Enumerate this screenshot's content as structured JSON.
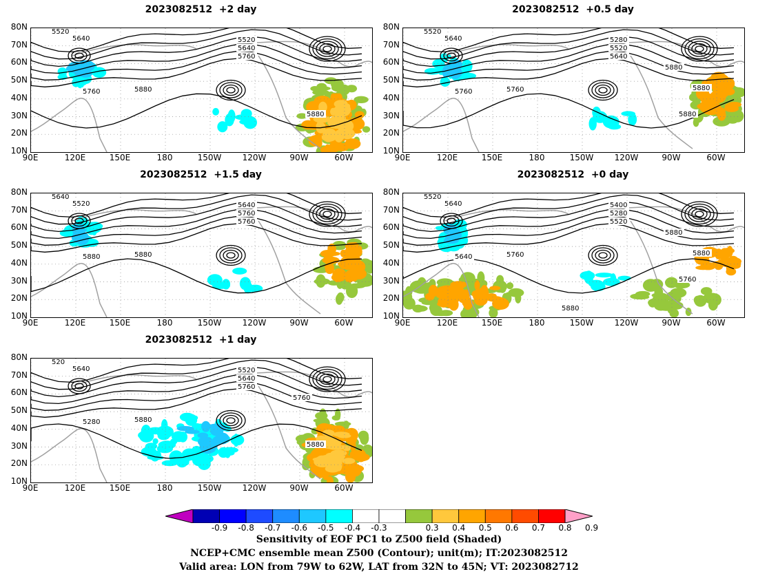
{
  "panels": [
    {
      "title": "2023082512  +2 day",
      "labels": [
        "5520",
        "5640",
        "5520",
        "5640",
        "5760",
        "5760",
        "5880",
        "5880"
      ],
      "shading": "strong-east"
    },
    {
      "title": "2023082512  +0.5 day",
      "labels": [
        "5520",
        "5640",
        "5280",
        "5520",
        "5640",
        "5760",
        "5760",
        "5880",
        "5880",
        "5880"
      ],
      "shading": "medium-east"
    },
    {
      "title": "2023082512  +1.5 day",
      "labels": [
        "5640",
        "5520",
        "5640",
        "5760",
        "5760",
        "5880",
        "5880"
      ],
      "shading": "medium-east"
    },
    {
      "title": "2023082512  +0 day",
      "labels": [
        "5520",
        "5640",
        "5400",
        "5280",
        "5520",
        "5640",
        "5760",
        "5760",
        "5880",
        "5880",
        "5880"
      ],
      "shading": "south-west"
    },
    {
      "title": "2023082512  +1 day",
      "labels": [
        "520",
        "5640",
        "5520",
        "5640",
        "5760",
        "5280",
        "5880",
        "5880",
        "5760"
      ],
      "shading": "strong-east-blue"
    }
  ],
  "lat_labels": [
    "80N",
    "70N",
    "60N",
    "50N",
    "40N",
    "30N",
    "20N",
    "10N"
  ],
  "lon_labels": [
    "90E",
    "120E",
    "150E",
    "180",
    "150W",
    "120W",
    "90W",
    "60W"
  ],
  "colorbar": {
    "colors": [
      "#c000c0",
      "#0000b4",
      "#0000ff",
      "#1e4bff",
      "#1e8cff",
      "#1ec8ff",
      "#00ffff",
      "#ffffff",
      "#ffffff",
      "#96c83c",
      "#ffc83c",
      "#ffa500",
      "#ff7800",
      "#ff4b00",
      "#ff0000",
      "#ffa0c8"
    ],
    "ticks": [
      "-0.9",
      "-0.8",
      "-0.7",
      "-0.6",
      "-0.5",
      "-0.4",
      "-0.3",
      "0.3",
      "0.4",
      "0.5",
      "0.6",
      "0.7",
      "0.8",
      "0.9"
    ]
  },
  "footer": {
    "line1": "Sensitivity of EOF PC1 to Z500 field (Shaded)",
    "line2": "NCEP+CMC ensemble mean Z500 (Contour); unit(m); IT:2023082512",
    "line3": "Valid area: LON from 79W to 62W, LAT from 32N to 45N; VT: 2023082712"
  }
}
